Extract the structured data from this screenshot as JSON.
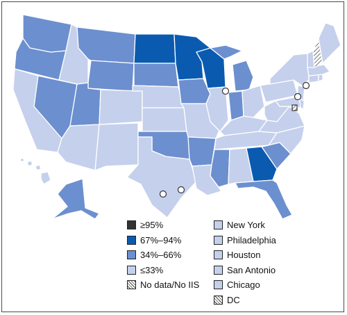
{
  "colors": {
    "ge95": "#333333",
    "c67_94": "#0a5bb0",
    "c34_66": "#6c8fcf",
    "le33": "#c5d0ec",
    "border": "#ffffff",
    "hatch": "#444444"
  },
  "legend": {
    "coverage": [
      {
        "label": "≥95%",
        "color": "#333333"
      },
      {
        "label": "67%–94%",
        "color": "#0a5bb0"
      },
      {
        "label": "34%–66%",
        "color": "#6c8fcf"
      },
      {
        "label": "≤33%",
        "color": "#c5d0ec"
      },
      {
        "label": "No data/No IIS",
        "color": "hatch"
      }
    ],
    "cities": [
      {
        "label": "New York",
        "color": "#c5d0ec"
      },
      {
        "label": "Philadelphia",
        "color": "#c5d0ec"
      },
      {
        "label": "Houston",
        "color": "#c5d0ec"
      },
      {
        "label": "San Antonio",
        "color": "#c5d0ec"
      },
      {
        "label": "Chicago",
        "color": "#c5d0ec"
      },
      {
        "label": "DC",
        "color": "hatch"
      }
    ]
  },
  "states": {
    "c67_94": [
      "North Dakota",
      "Minnesota",
      "Wisconsin",
      "Georgia"
    ],
    "c34_66": [
      "Washington",
      "Oregon",
      "Montana",
      "Wyoming",
      "Nevada",
      "Utah",
      "South Dakota",
      "Iowa",
      "Michigan",
      "Indiana",
      "Oklahoma",
      "Arkansas",
      "Mississippi",
      "South Carolina",
      "Florida",
      "Alaska"
    ],
    "no_data": [
      "New Hampshire"
    ],
    "le33": [
      "California",
      "Idaho",
      "Arizona",
      "Colorado",
      "New Mexico",
      "Nebraska",
      "Kansas",
      "Texas",
      "Missouri",
      "Illinois",
      "Louisiana",
      "Alabama",
      "Tennessee",
      "Kentucky",
      "Ohio",
      "West Virginia",
      "Virginia",
      "North Carolina",
      "Pennsylvania",
      "New York",
      "Vermont",
      "Maine",
      "Massachusetts",
      "Connecticut",
      "Rhode Island",
      "New Jersey",
      "Delaware",
      "Maryland",
      "Hawaii"
    ]
  }
}
